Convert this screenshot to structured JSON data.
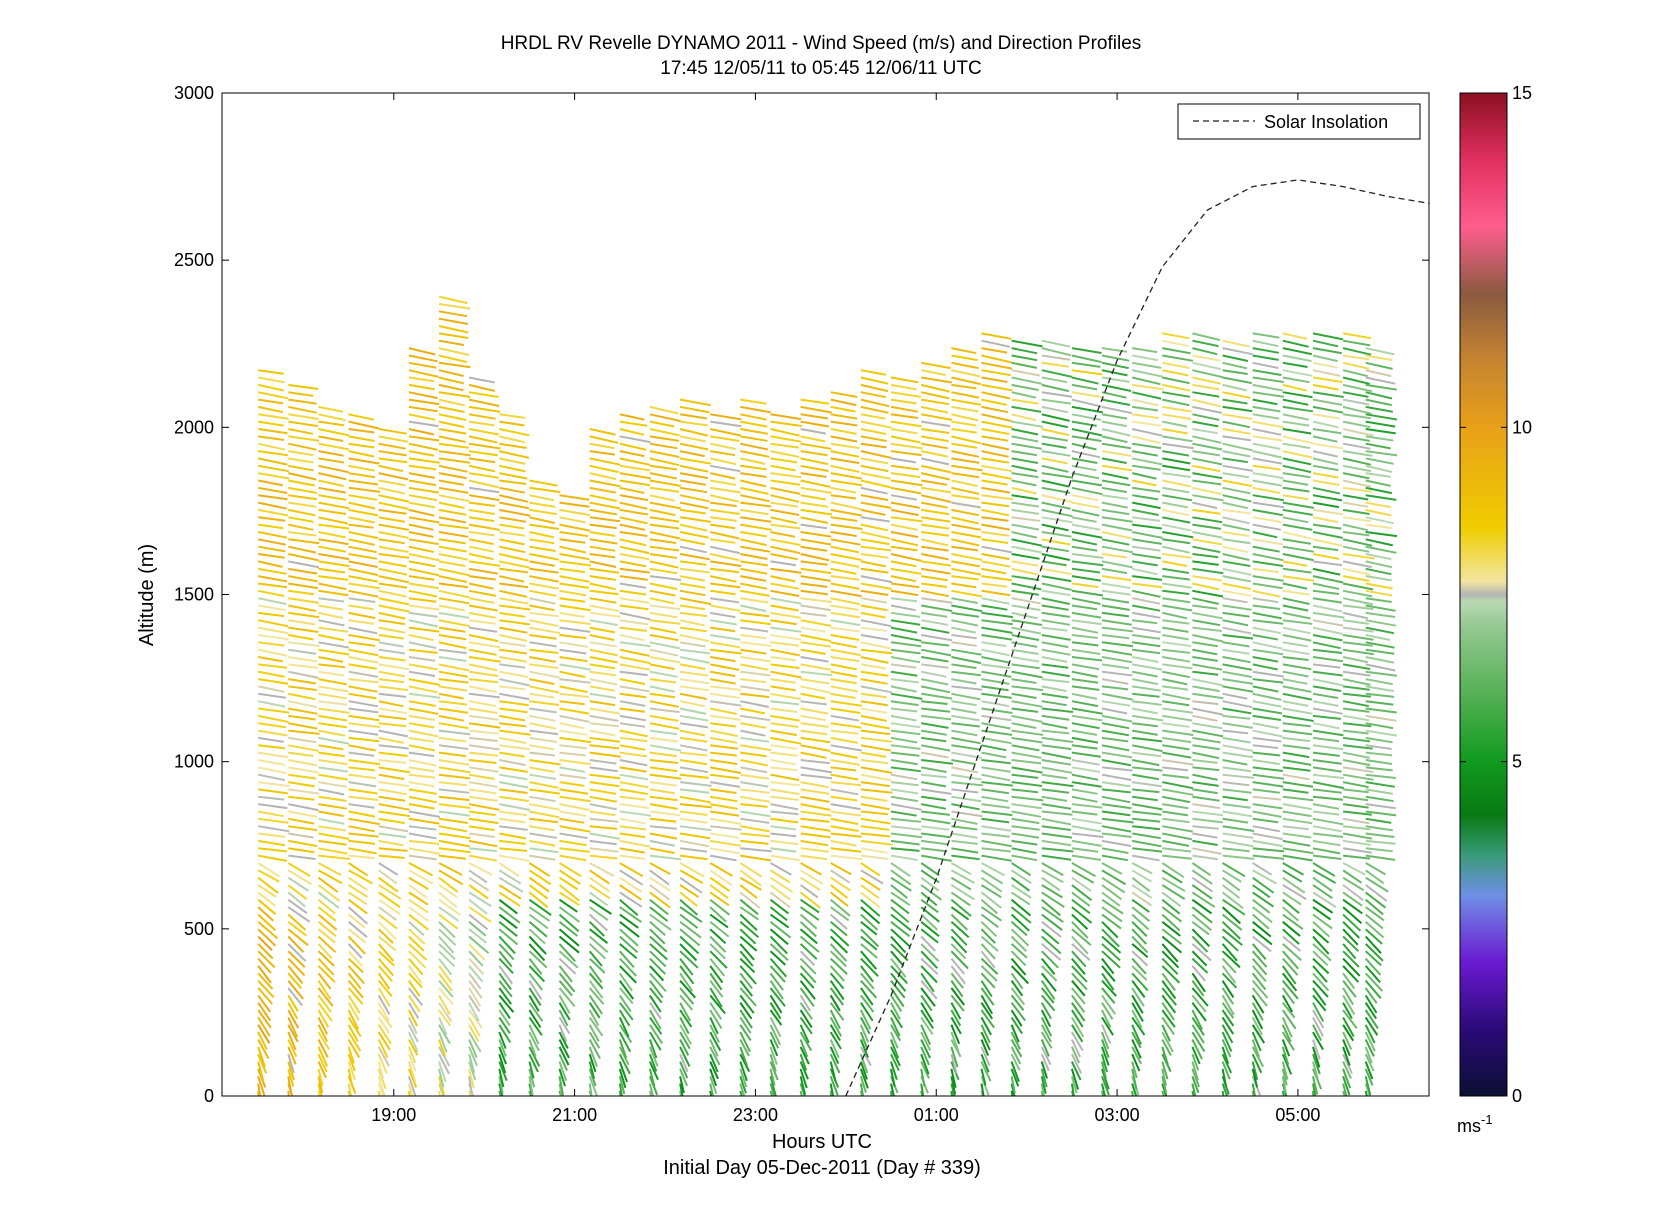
{
  "chart_data": {
    "type": "wind-barb-profile",
    "title": "HRDL RV Revelle DYNAMO 2011 - Wind Speed (m/s) and Direction Profiles",
    "subtitle": "17:45 12/05/11 to 05:45 12/06/11  UTC",
    "xlabel": "Hours UTC",
    "xlabel2": "Initial Day 05-Dec-2011 (Day # 339)",
    "ylabel": "Altitude (m)",
    "x_ticks": [
      "19:00",
      "21:00",
      "23:00",
      "01:00",
      "03:00",
      "05:00"
    ],
    "y_ticks": [
      "0",
      "500",
      "1000",
      "1500",
      "2000",
      "2500",
      "3000"
    ],
    "ylim": [
      0,
      3000
    ],
    "xlim_hours": [
      17.1,
      30.45
    ],
    "profile_times_hours": [
      17.5,
      17.833,
      18.167,
      18.5,
      18.833,
      19.167,
      19.5,
      19.833,
      20.167,
      20.5,
      20.833,
      21.167,
      21.5,
      21.833,
      22.167,
      22.5,
      22.833,
      23.167,
      23.5,
      23.833,
      24.167,
      24.5,
      24.833,
      25.167,
      25.5,
      25.833,
      26.167,
      26.5,
      26.833,
      27.167,
      27.5,
      27.833,
      28.167,
      28.5,
      28.833,
      29.167,
      29.5,
      29.75
    ],
    "profile_top_altitudes_m": [
      2180,
      2130,
      2080,
      2050,
      2000,
      2250,
      2400,
      2150,
      2050,
      1850,
      1800,
      2000,
      2050,
      2080,
      2100,
      2050,
      2100,
      2050,
      2100,
      2120,
      2180,
      2150,
      2200,
      2250,
      2300,
      2280,
      2280,
      2250,
      2250,
      2250,
      2300,
      2300,
      2280,
      2300,
      2300,
      2300,
      2300,
      2250
    ],
    "legend": {
      "entries": [
        "Solar Insolation"
      ],
      "placement": "top-right"
    },
    "solar_insolation_curve": {
      "style": "dashed",
      "x_hours": [
        24.0,
        24.5,
        25.0,
        25.5,
        26.0,
        26.5,
        27.0,
        27.5,
        28.0,
        28.5,
        29.0,
        29.5,
        30.0,
        30.45
      ],
      "y_altitude_m": [
        0,
        300,
        650,
        1050,
        1450,
        1850,
        2200,
        2480,
        2650,
        2720,
        2740,
        2720,
        2690,
        2670
      ]
    },
    "colorbar": {
      "min": 0,
      "max": 15,
      "ticks": [
        "0",
        "5",
        "10",
        "15"
      ],
      "units_label": "ms",
      "units_exponent": "-1",
      "stops": [
        {
          "value": 0,
          "color": "#0b0f33"
        },
        {
          "value": 1,
          "color": "#2b0a78"
        },
        {
          "value": 2,
          "color": "#6a1ad1"
        },
        {
          "value": 3,
          "color": "#6f8fe6"
        },
        {
          "value": 3.6,
          "color": "#3a9a7a"
        },
        {
          "value": 4.2,
          "color": "#0a7a14"
        },
        {
          "value": 5,
          "color": "#109a1e"
        },
        {
          "value": 6,
          "color": "#55b055"
        },
        {
          "value": 7,
          "color": "#93c88f"
        },
        {
          "value": 7.4,
          "color": "#b9d9b3"
        },
        {
          "value": 7.5,
          "color": "#b4b4b4"
        },
        {
          "value": 7.7,
          "color": "#f3e6a0"
        },
        {
          "value": 8.5,
          "color": "#f0cd00"
        },
        {
          "value": 10,
          "color": "#e9a019"
        },
        {
          "value": 11,
          "color": "#c68430"
        },
        {
          "value": 12,
          "color": "#8a5a40"
        },
        {
          "value": 13,
          "color": "#ff5d8f"
        },
        {
          "value": 14,
          "color": "#e13060"
        },
        {
          "value": 15,
          "color": "#8b1020"
        }
      ]
    }
  }
}
